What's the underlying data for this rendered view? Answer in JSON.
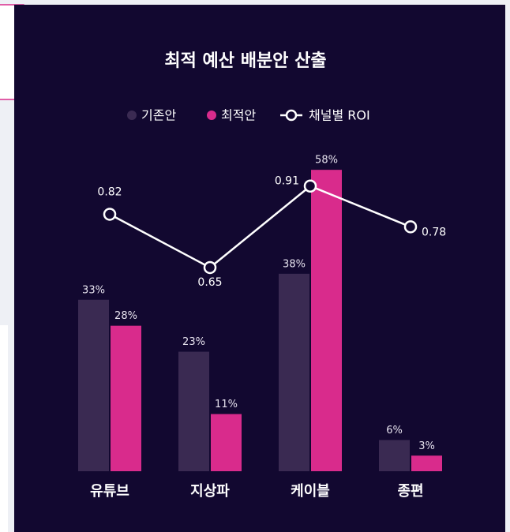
{
  "chart_data": {
    "type": "bar",
    "title": "최적 예산 배분안 산출",
    "categories": [
      "유튜브",
      "지상파",
      "케이블",
      "종편"
    ],
    "series": [
      {
        "name": "기존안",
        "color": "#3a2a52",
        "values": [
          33,
          23,
          38,
          6
        ],
        "value_labels": [
          "33%",
          "23%",
          "38%",
          "6%"
        ]
      },
      {
        "name": "최적안",
        "color": "#d92b8c",
        "values": [
          28,
          11,
          58,
          3
        ],
        "value_labels": [
          "28%",
          "11%",
          "58%",
          "3%"
        ]
      },
      {
        "name": "채널별 ROI",
        "type": "line",
        "axis": "y2",
        "color": "#ffffff",
        "values": [
          0.82,
          0.65,
          0.91,
          0.78
        ]
      }
    ],
    "ylim": [
      0,
      60
    ],
    "y2lim": [
      0,
      1
    ]
  }
}
